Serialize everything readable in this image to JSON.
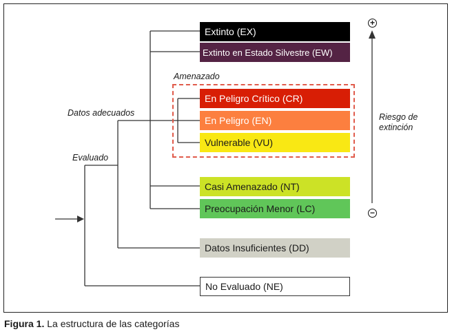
{
  "categories": [
    {
      "label": "Extinto (EX)",
      "bg": "#000000",
      "fg": "#ffffff"
    },
    {
      "label": "Extinto en Estado Silvestre (EW)",
      "bg": "#542344",
      "fg": "#ffffff"
    },
    {
      "label": "En Peligro Crítico (CR)",
      "bg": "#d81e05",
      "fg": "#ffffff"
    },
    {
      "label": "En Peligro (EN)",
      "bg": "#fc7f3f",
      "fg": "#ffffff"
    },
    {
      "label": "Vulnerable (VU)",
      "bg": "#f9e814",
      "fg": "#1a1a1a"
    },
    {
      "label": "Casi Amenazado (NT)",
      "bg": "#cce226",
      "fg": "#1a1a1a"
    },
    {
      "label": "Preocupación Menor (LC)",
      "bg": "#60c659",
      "fg": "#1a1a1a"
    },
    {
      "label": "Datos Insuficientes (DD)",
      "bg": "#d1d1c6",
      "fg": "#1a1a1a"
    },
    {
      "label": "No Evaluado (NE)",
      "bg": "#ffffff",
      "fg": "#1a1a1a"
    }
  ],
  "labels": {
    "amenazado": "Amenazado",
    "datos_adecuados": "Datos adecuados",
    "evaluado": "Evaluado",
    "riesgo_line1": "Riesgo de",
    "riesgo_line2": "extinción",
    "plus": "+",
    "minus": "−"
  },
  "caption": {
    "figure": "Figura 1.",
    "text": " La estructura de las categorías"
  },
  "colors": {
    "line": "#333333",
    "threat_frame": "#e05a4a"
  }
}
